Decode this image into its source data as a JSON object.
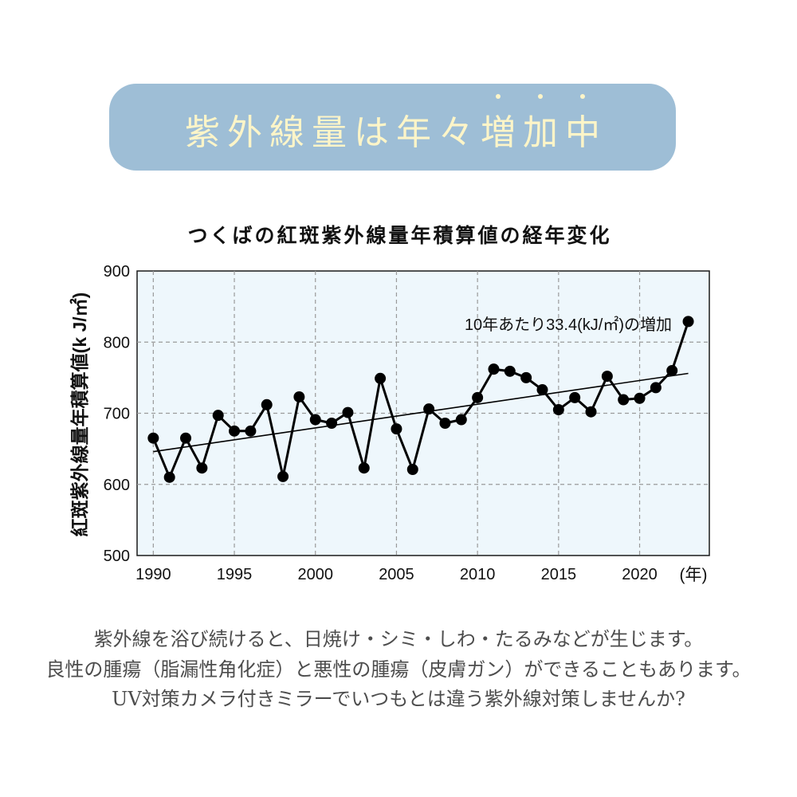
{
  "banner": {
    "title": "紫外線量は年々増加中",
    "bg_color": "#9ebed6",
    "text_color": "#fdf5c8"
  },
  "chart_data": {
    "type": "line",
    "title": "つくばの紅斑紫外線量年積算値の経年変化",
    "xlabel": "(年)",
    "ylabel": "紅斑紫外線量年積算値(k J/㎡)",
    "x": [
      1990,
      1991,
      1992,
      1993,
      1994,
      1995,
      1996,
      1997,
      1998,
      1999,
      2000,
      2001,
      2002,
      2003,
      2004,
      2005,
      2006,
      2007,
      2008,
      2009,
      2010,
      2011,
      2012,
      2013,
      2014,
      2015,
      2016,
      2017,
      2018,
      2019,
      2020,
      2021,
      2022,
      2023
    ],
    "series": [
      {
        "values": [
          665,
          610,
          665,
          623,
          697,
          675,
          675,
          712,
          611,
          723,
          691,
          686,
          701,
          623,
          749,
          678,
          621,
          706,
          686,
          691,
          722,
          762,
          759,
          750,
          733,
          705,
          722,
          702,
          752,
          719,
          721,
          736,
          760,
          829
        ]
      }
    ],
    "trend": {
      "x": [
        1990,
        2023
      ],
      "y": [
        646,
        756
      ]
    },
    "annotation": "10年あたり33.4(kJ/㎡)の増加",
    "xticks": [
      1990,
      1995,
      2000,
      2005,
      2010,
      2015,
      2020
    ],
    "yticks": [
      500,
      600,
      700,
      800,
      900
    ],
    "xlim": [
      1989,
      2024.3
    ],
    "ylim": [
      500,
      900
    ],
    "grid": true,
    "plot_bg": "#eef7fc",
    "line_color": "#000000"
  },
  "body_text": [
    "紫外線を浴び続けると、日焼け・シミ・しわ・たるみなどが生じます。",
    "良性の腫瘍（脂漏性角化症）と悪性の腫瘍（皮膚ガン）ができることもあります。",
    "UV対策カメラ付きミラーでいつもとは違う紫外線対策しませんか?"
  ]
}
